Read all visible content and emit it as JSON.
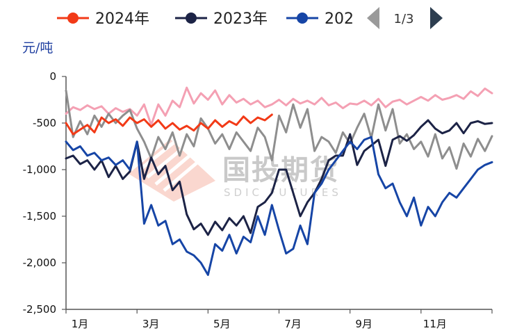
{
  "legend": {
    "items": [
      {
        "label": "2024年",
        "color": "#f23a17"
      },
      {
        "label": "2023年",
        "color": "#1c2346"
      },
      {
        "label": "202",
        "color": "#1645a6"
      }
    ],
    "page": "1/3",
    "prev_icon": "triangle-left-icon",
    "next_icon": "triangle-right-icon"
  },
  "watermark": {
    "name": "国投期货",
    "sub": "SDIC FUTURES"
  },
  "chart_data": {
    "type": "line",
    "ylabel": "元/吨",
    "ylim": [
      -2500,
      0
    ],
    "yticks": [
      0,
      -500,
      -1000,
      -1500,
      -2000,
      -2500
    ],
    "ytick_labels": [
      "0",
      "-500",
      "-1,000",
      "-1,500",
      "-2,000",
      "-2,500"
    ],
    "xlim": [
      0,
      12
    ],
    "xticks": [
      0,
      2,
      4,
      6,
      8,
      10
    ],
    "xtick_labels": [
      "1月",
      "3月",
      "5月",
      "7月",
      "9月",
      "11月"
    ],
    "grid": false,
    "legend_position": "top",
    "series": [
      {
        "name": "",
        "color": "#f4a0b3",
        "x": [
          0,
          0.2,
          0.4,
          0.6,
          0.8,
          1.0,
          1.2,
          1.4,
          1.6,
          1.8,
          2.0,
          2.2,
          2.4,
          2.6,
          2.8,
          3.0,
          3.2,
          3.4,
          3.6,
          3.8,
          4.0,
          4.2,
          4.4,
          4.6,
          4.8,
          5.0,
          5.2,
          5.4,
          5.6,
          5.8,
          6.0,
          6.2,
          6.4,
          6.6,
          6.8,
          7.0,
          7.2,
          7.4,
          7.6,
          7.8,
          8.0,
          8.2,
          8.4,
          8.6,
          8.8,
          9.0,
          9.2,
          9.4,
          9.6,
          9.8,
          10.0,
          10.2,
          10.4,
          10.6,
          10.8,
          11.0,
          11.2,
          11.4,
          11.6,
          11.8,
          12.0
        ],
        "y": [
          -400,
          -330,
          -360,
          -310,
          -350,
          -320,
          -400,
          -340,
          -380,
          -350,
          -420,
          -300,
          -520,
          -300,
          -420,
          -260,
          -330,
          -120,
          -290,
          -180,
          -250,
          -150,
          -300,
          -200,
          -280,
          -240,
          -300,
          -260,
          -330,
          -300,
          -250,
          -310,
          -240,
          -290,
          -260,
          -300,
          -230,
          -310,
          -280,
          -340,
          -290,
          -300,
          -260,
          -310,
          -240,
          -330,
          -270,
          -250,
          -300,
          -260,
          -220,
          -260,
          -200,
          -250,
          -230,
          -200,
          -240,
          -160,
          -210,
          -130,
          -180
        ]
      },
      {
        "name": "",
        "color": "#8e8e8e",
        "x": [
          0,
          0.2,
          0.4,
          0.6,
          0.8,
          1.0,
          1.2,
          1.4,
          1.6,
          1.8,
          2.0,
          2.2,
          2.4,
          2.6,
          2.8,
          3.0,
          3.2,
          3.4,
          3.6,
          3.8,
          4.0,
          4.2,
          4.4,
          4.6,
          4.8,
          5.0,
          5.2,
          5.4,
          5.6,
          5.8,
          6.0,
          6.2,
          6.4,
          6.6,
          6.8,
          7.0,
          7.2,
          7.4,
          7.6,
          7.8,
          8.0,
          8.2,
          8.4,
          8.6,
          8.8,
          9.0,
          9.2,
          9.4,
          9.6,
          9.8,
          10.0,
          10.2,
          10.4,
          10.6,
          10.8,
          11.0,
          11.2,
          11.4,
          11.6,
          11.8,
          12.0
        ],
        "y": [
          -150,
          -650,
          -480,
          -620,
          -420,
          -540,
          -400,
          -500,
          -420,
          -360,
          -560,
          -700,
          -880,
          -650,
          -780,
          -600,
          -850,
          -620,
          -750,
          -450,
          -560,
          -720,
          -620,
          -780,
          -600,
          -700,
          -800,
          -550,
          -650,
          -900,
          -420,
          -600,
          -300,
          -550,
          -350,
          -800,
          -650,
          -700,
          -820,
          -600,
          -720,
          -550,
          -400,
          -660,
          -300,
          -580,
          -350,
          -720,
          -620,
          -780,
          -700,
          -860,
          -620,
          -880,
          -760,
          -990,
          -720,
          -860,
          -670,
          -800,
          -640
        ]
      },
      {
        "name": "2024年",
        "color": "#f23a17",
        "x": [
          0,
          0.2,
          0.4,
          0.6,
          0.8,
          1.0,
          1.2,
          1.4,
          1.6,
          1.8,
          2.0,
          2.2,
          2.4,
          2.6,
          2.8,
          3.0,
          3.2,
          3.4,
          3.6,
          3.8,
          4.0,
          4.2,
          4.4,
          4.6,
          4.8,
          5.0,
          5.2,
          5.4,
          5.6,
          5.8
        ],
        "y": [
          -500,
          -620,
          -570,
          -520,
          -600,
          -440,
          -500,
          -460,
          -530,
          -440,
          -500,
          -460,
          -540,
          -470,
          -560,
          -500,
          -570,
          -530,
          -580,
          -500,
          -560,
          -470,
          -540,
          -480,
          -520,
          -430,
          -500,
          -440,
          -470,
          -410
        ]
      },
      {
        "name": "2023年",
        "color": "#1c2346",
        "x": [
          0,
          0.2,
          0.4,
          0.6,
          0.8,
          1.0,
          1.2,
          1.4,
          1.6,
          1.8,
          2.0,
          2.2,
          2.4,
          2.6,
          2.8,
          3.0,
          3.2,
          3.4,
          3.6,
          3.8,
          4.0,
          4.2,
          4.4,
          4.6,
          4.8,
          5.0,
          5.2,
          5.4,
          5.6,
          5.8,
          6.0,
          6.2,
          6.4,
          6.6,
          6.8,
          7.0,
          7.2,
          7.4,
          7.6,
          7.8,
          8.0,
          8.2,
          8.4,
          8.6,
          8.8,
          9.0,
          9.2,
          9.4,
          9.6,
          9.8,
          10.0,
          10.2,
          10.4,
          10.6,
          10.8,
          11.0,
          11.2,
          11.4,
          11.6,
          11.8,
          12.0
        ],
        "y": [
          -880,
          -850,
          -940,
          -900,
          -1000,
          -900,
          -1080,
          -960,
          -1100,
          -1020,
          -700,
          -1100,
          -870,
          -1050,
          -960,
          -1220,
          -1130,
          -1480,
          -1640,
          -1580,
          -1700,
          -1560,
          -1650,
          -1520,
          -1600,
          -1500,
          -1680,
          -1400,
          -1350,
          -1250,
          -1000,
          -1000,
          -1250,
          -1500,
          -1350,
          -1250,
          -1100,
          -900,
          -850,
          -850,
          -620,
          -950,
          -800,
          -740,
          -680,
          -960,
          -680,
          -640,
          -690,
          -630,
          -540,
          -470,
          -560,
          -610,
          -580,
          -500,
          -610,
          -500,
          -480,
          -510,
          -500
        ]
      },
      {
        "name": "202",
        "color": "#1645a6",
        "x": [
          0,
          0.2,
          0.4,
          0.6,
          0.8,
          1.0,
          1.2,
          1.4,
          1.6,
          1.8,
          2.0,
          2.2,
          2.4,
          2.6,
          2.8,
          3.0,
          3.2,
          3.4,
          3.6,
          3.8,
          4.0,
          4.2,
          4.4,
          4.6,
          4.8,
          5.0,
          5.2,
          5.4,
          5.6,
          5.8,
          6.0,
          6.2,
          6.4,
          6.6,
          6.8,
          7.0,
          7.2,
          7.4,
          7.6,
          7.8,
          8.0,
          8.2,
          8.4,
          8.6,
          8.8,
          9.0,
          9.2,
          9.4,
          9.6,
          9.8,
          10.0,
          10.2,
          10.4,
          10.6,
          10.8,
          11.0,
          11.2,
          11.4,
          11.6,
          11.8,
          12.0
        ],
        "y": [
          -700,
          -790,
          -750,
          -850,
          -820,
          -900,
          -870,
          -950,
          -900,
          -1000,
          -700,
          -1580,
          -1380,
          -1600,
          -1550,
          -1800,
          -1750,
          -1880,
          -1920,
          -2000,
          -2130,
          -1800,
          -1870,
          -1700,
          -1900,
          -1720,
          -1780,
          -1500,
          -1700,
          -1380,
          -1650,
          -1900,
          -1850,
          -1600,
          -1800,
          -1250,
          -1150,
          -1000,
          -900,
          -800,
          -700,
          -780,
          -680,
          -650,
          -1050,
          -1200,
          -1150,
          -1350,
          -1500,
          -1300,
          -1600,
          -1400,
          -1500,
          -1350,
          -1250,
          -1300,
          -1200,
          -1100,
          -1000,
          -950,
          -920
        ]
      }
    ]
  }
}
